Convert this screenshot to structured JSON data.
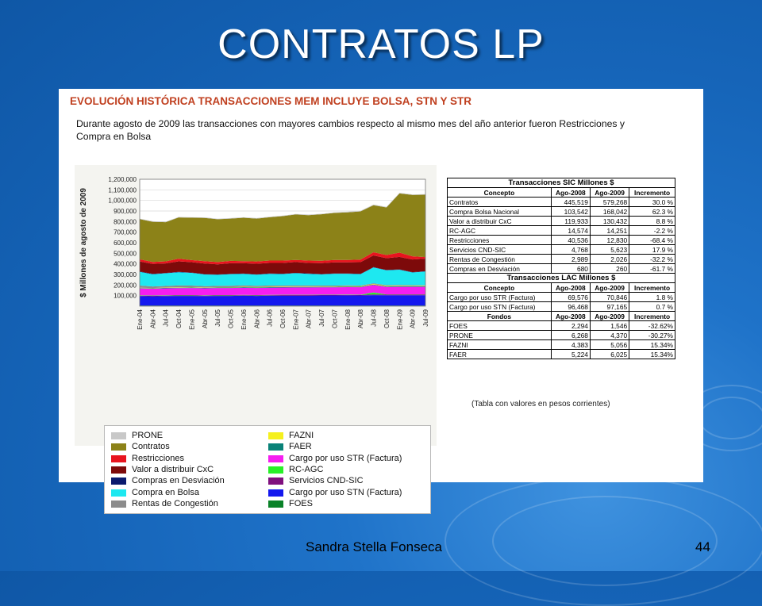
{
  "slide": {
    "title": "CONTRATOS LP",
    "author": "Sandra Stella Fonseca",
    "page": "44"
  },
  "panel": {
    "heading": "EVOLUCIÓN HISTÓRICA TRANSACCIONES MEM INCLUYE BOLSA, STN Y STR",
    "description": "Durante agosto de 2009 las transacciones con mayores cambios respecto al mismo mes del año anterior fueron Restricciones y Compra en Bolsa",
    "note": "(Tabla con valores en pesos corrientes)"
  },
  "colors": {
    "PRONE": "#c8c8c8",
    "Contratos": "#8c8218",
    "Restricciones": "#e8141e",
    "Valor a distribuir CxC": "#7d0a0a",
    "Compras en Desviación": "#0a1a6e",
    "Compra en Bolsa": "#1ee8f0",
    "Rentas de Congestión": "#8c8c8c",
    "FAZNI": "#f5f01e",
    "FAER": "#0a8278",
    "Cargo por uso STR (Factura)": "#f51ef0",
    "RC-AGC": "#28f028",
    "Servicios CND-SIC": "#80107e",
    "Cargo por uso STN (Factura)": "#1418ee",
    "FOES": "#0a8228"
  },
  "chart_data": {
    "type": "area",
    "stacked": true,
    "title": "",
    "ylabel": "$ Millones de agosto de 2009",
    "xlabel": "",
    "ylim": [
      0,
      1200000
    ],
    "yticks": [
      "1,200,000",
      "1,100,000",
      "1,000,000",
      "900,000",
      "800,000",
      "700,000",
      "600,000",
      "500,000",
      "400,000",
      "300,000",
      "200,000",
      "100,000"
    ],
    "xticks": [
      "Ene-04",
      "Abr-04",
      "Jul-04",
      "Oct-04",
      "Ene-05",
      "Abr-05",
      "Jul-05",
      "Oct-05",
      "Ene-06",
      "Abr-06",
      "Jul-06",
      "Oct-06",
      "Ene-07",
      "Abr-07",
      "Jul-07",
      "Oct-07",
      "Ene-08",
      "Abr-08",
      "Jul-08",
      "Oct-08",
      "Ene-09",
      "Abr-09",
      "Jul-09"
    ],
    "legend_position": "bottom",
    "grid": true,
    "x": [
      "Ene-04",
      "Abr-04",
      "Jul-04",
      "Oct-04",
      "Ene-05",
      "Abr-05",
      "Jul-05",
      "Oct-05",
      "Ene-06",
      "Abr-06",
      "Jul-06",
      "Oct-06",
      "Ene-07",
      "Abr-07",
      "Jul-07",
      "Oct-07",
      "Ene-08",
      "Abr-08",
      "Jul-08",
      "Oct-08",
      "Ene-09",
      "Abr-09",
      "Jul-09"
    ],
    "series": [
      {
        "name": "FOES",
        "values": [
          5000,
          5000,
          5000,
          5000,
          5000,
          5000,
          5000,
          5000,
          5000,
          5000,
          5000,
          5000,
          5000,
          5000,
          5000,
          5000,
          5000,
          5000,
          6000,
          6000,
          6000,
          6000,
          6000
        ]
      },
      {
        "name": "Cargo por uso STN (Factura)",
        "values": [
          90000,
          88000,
          90000,
          92000,
          92000,
          90000,
          92000,
          92000,
          94000,
          92000,
          94000,
          95000,
          95000,
          95000,
          96000,
          96000,
          97000,
          96000,
          98000,
          97000,
          97000,
          97000,
          97000
        ]
      },
      {
        "name": "Servicios CND-SIC",
        "values": [
          5000,
          5000,
          5000,
          5000,
          5000,
          5000,
          5000,
          5000,
          5000,
          5000,
          5000,
          5000,
          5000,
          5000,
          5000,
          5000,
          5000,
          5000,
          6000,
          6000,
          6000,
          6000,
          6000
        ]
      },
      {
        "name": "RC-AGC",
        "values": [
          3000,
          3000,
          3000,
          3000,
          3000,
          3000,
          3000,
          3000,
          3000,
          3000,
          3000,
          3000,
          3000,
          3000,
          3000,
          3000,
          3000,
          3000,
          20000,
          3000,
          3000,
          3000,
          3000
        ]
      },
      {
        "name": "Cargo por uso STR (Factura)",
        "values": [
          65000,
          64000,
          66000,
          66000,
          67000,
          66000,
          67000,
          67000,
          68000,
          67000,
          68000,
          68000,
          69000,
          69000,
          69000,
          69000,
          70000,
          70000,
          70000,
          70000,
          71000,
          71000,
          71000
        ]
      },
      {
        "name": "FAER",
        "values": [
          4000,
          4000,
          4000,
          4000,
          4000,
          4000,
          4000,
          4000,
          5000,
          5000,
          5000,
          5000,
          5000,
          5000,
          5000,
          5000,
          5000,
          5000,
          5000,
          5000,
          6000,
          6000,
          6000
        ]
      },
      {
        "name": "FAZNI",
        "values": [
          3000,
          3000,
          3000,
          3000,
          3000,
          3000,
          3000,
          3000,
          4000,
          4000,
          4000,
          4000,
          4000,
          4000,
          4000,
          4000,
          4000,
          4000,
          5000,
          5000,
          5000,
          5000,
          5000
        ]
      },
      {
        "name": "Rentas de Congestión",
        "values": [
          20000,
          15000,
          15000,
          18000,
          16000,
          14000,
          13000,
          14000,
          13000,
          12000,
          12000,
          11000,
          11000,
          10000,
          9000,
          8000,
          8000,
          7000,
          7000,
          7000,
          6000,
          5000,
          4000
        ]
      },
      {
        "name": "Compra en Bolsa",
        "values": [
          130000,
          115000,
          120000,
          125000,
          120000,
          110000,
          105000,
          110000,
          108000,
          105000,
          110000,
          108000,
          115000,
          110000,
          105000,
          112000,
          110000,
          108000,
          150000,
          140000,
          145000,
          120000,
          130000
        ]
      },
      {
        "name": "Compras en Desviación",
        "values": [
          3000,
          3000,
          3000,
          3000,
          3000,
          3000,
          3000,
          3000,
          3000,
          3000,
          3000,
          3000,
          3000,
          3000,
          3000,
          3000,
          3000,
          3000,
          3000,
          3000,
          3000,
          3000,
          3000
        ]
      },
      {
        "name": "Valor a distribuir CxC",
        "values": [
          95000,
          95000,
          90000,
          100000,
          98000,
          100000,
          95000,
          100000,
          98000,
          100000,
          100000,
          102000,
          102000,
          100000,
          103000,
          105000,
          105000,
          110000,
          110000,
          112000,
          118000,
          120000,
          118000
        ]
      },
      {
        "name": "Restricciones",
        "values": [
          20000,
          18000,
          20000,
          25000,
          20000,
          22000,
          22000,
          22000,
          20000,
          22000,
          22000,
          22000,
          20000,
          22000,
          22000,
          22000,
          22000,
          25000,
          30000,
          30000,
          40000,
          30000,
          15000
        ]
      },
      {
        "name": "Contratos",
        "values": [
          380000,
          380000,
          370000,
          390000,
          400000,
          410000,
          405000,
          400000,
          410000,
          405000,
          410000,
          420000,
          430000,
          430000,
          440000,
          445000,
          450000,
          455000,
          445000,
          450000,
          560000,
          580000,
          590000
        ]
      },
      {
        "name": "PRONE",
        "values": [
          5000,
          5000,
          5000,
          5000,
          5000,
          5000,
          5000,
          5000,
          5000,
          5000,
          5000,
          5000,
          5000,
          5000,
          5000,
          5000,
          6000,
          6000,
          6000,
          6000,
          6000,
          5000,
          5000
        ]
      }
    ]
  },
  "legend": {
    "left": [
      "PRONE",
      "Contratos",
      "Restricciones",
      "Valor a distribuir CxC",
      "Compras en Desviación",
      "Compra en Bolsa",
      "Rentas de Congestión"
    ],
    "right": [
      "FAZNI",
      "FAER",
      "Cargo por uso STR (Factura)",
      "RC-AGC",
      "Servicios CND-SIC",
      "Cargo por uso STN (Factura)",
      "FOES"
    ]
  },
  "table_sic": {
    "title": "Transacciones SIC Millones $",
    "headers": [
      "Concepto",
      "Ago-2008",
      "Ago-2009",
      "Incremento"
    ],
    "rows": [
      [
        "Contratos",
        "445,519",
        "579,268",
        "30.0 %"
      ],
      [
        "Compra Bolsa Nacional",
        "103,542",
        "168,042",
        "62.3 %"
      ],
      [
        "Valor a distribuir CxC",
        "119,933",
        "130,432",
        "8.8 %"
      ],
      [
        "RC-AGC",
        "14,574",
        "14,251",
        "-2.2 %"
      ],
      [
        "Restricciones",
        "40,536",
        "12,830",
        "-68.4 %"
      ],
      [
        "Servicios CND-SIC",
        "4,768",
        "5,623",
        "17.9 %"
      ],
      [
        "Rentas de Congestión",
        "2,989",
        "2,026",
        "-32.2 %"
      ],
      [
        "Compras en Desviación",
        "680",
        "260",
        "-61.7 %"
      ]
    ]
  },
  "table_lac": {
    "title": "Transacciones LAC Millones $",
    "headers": [
      "Concepto",
      "Ago-2008",
      "Ago-2009",
      "Incremento"
    ],
    "rows": [
      [
        "Cargo por uso STR (Factura)",
        "69,576",
        "70,846",
        "1.8 %"
      ],
      [
        "Cargo por uso STN (Factura)",
        "96,468",
        "97,165",
        "0.7 %"
      ]
    ]
  },
  "table_fondos": {
    "headers": [
      "Fondos",
      "Ago-2008",
      "Ago-2009",
      "Incremento"
    ],
    "rows": [
      [
        "FOES",
        "2,294",
        "1,546",
        "-32.62%"
      ],
      [
        "PRONE",
        "6,268",
        "4,370",
        "-30.27%"
      ],
      [
        "FAZNI",
        "4,383",
        "5,056",
        "15.34%"
      ],
      [
        "FAER",
        "5,224",
        "6,025",
        "15.34%"
      ]
    ]
  }
}
